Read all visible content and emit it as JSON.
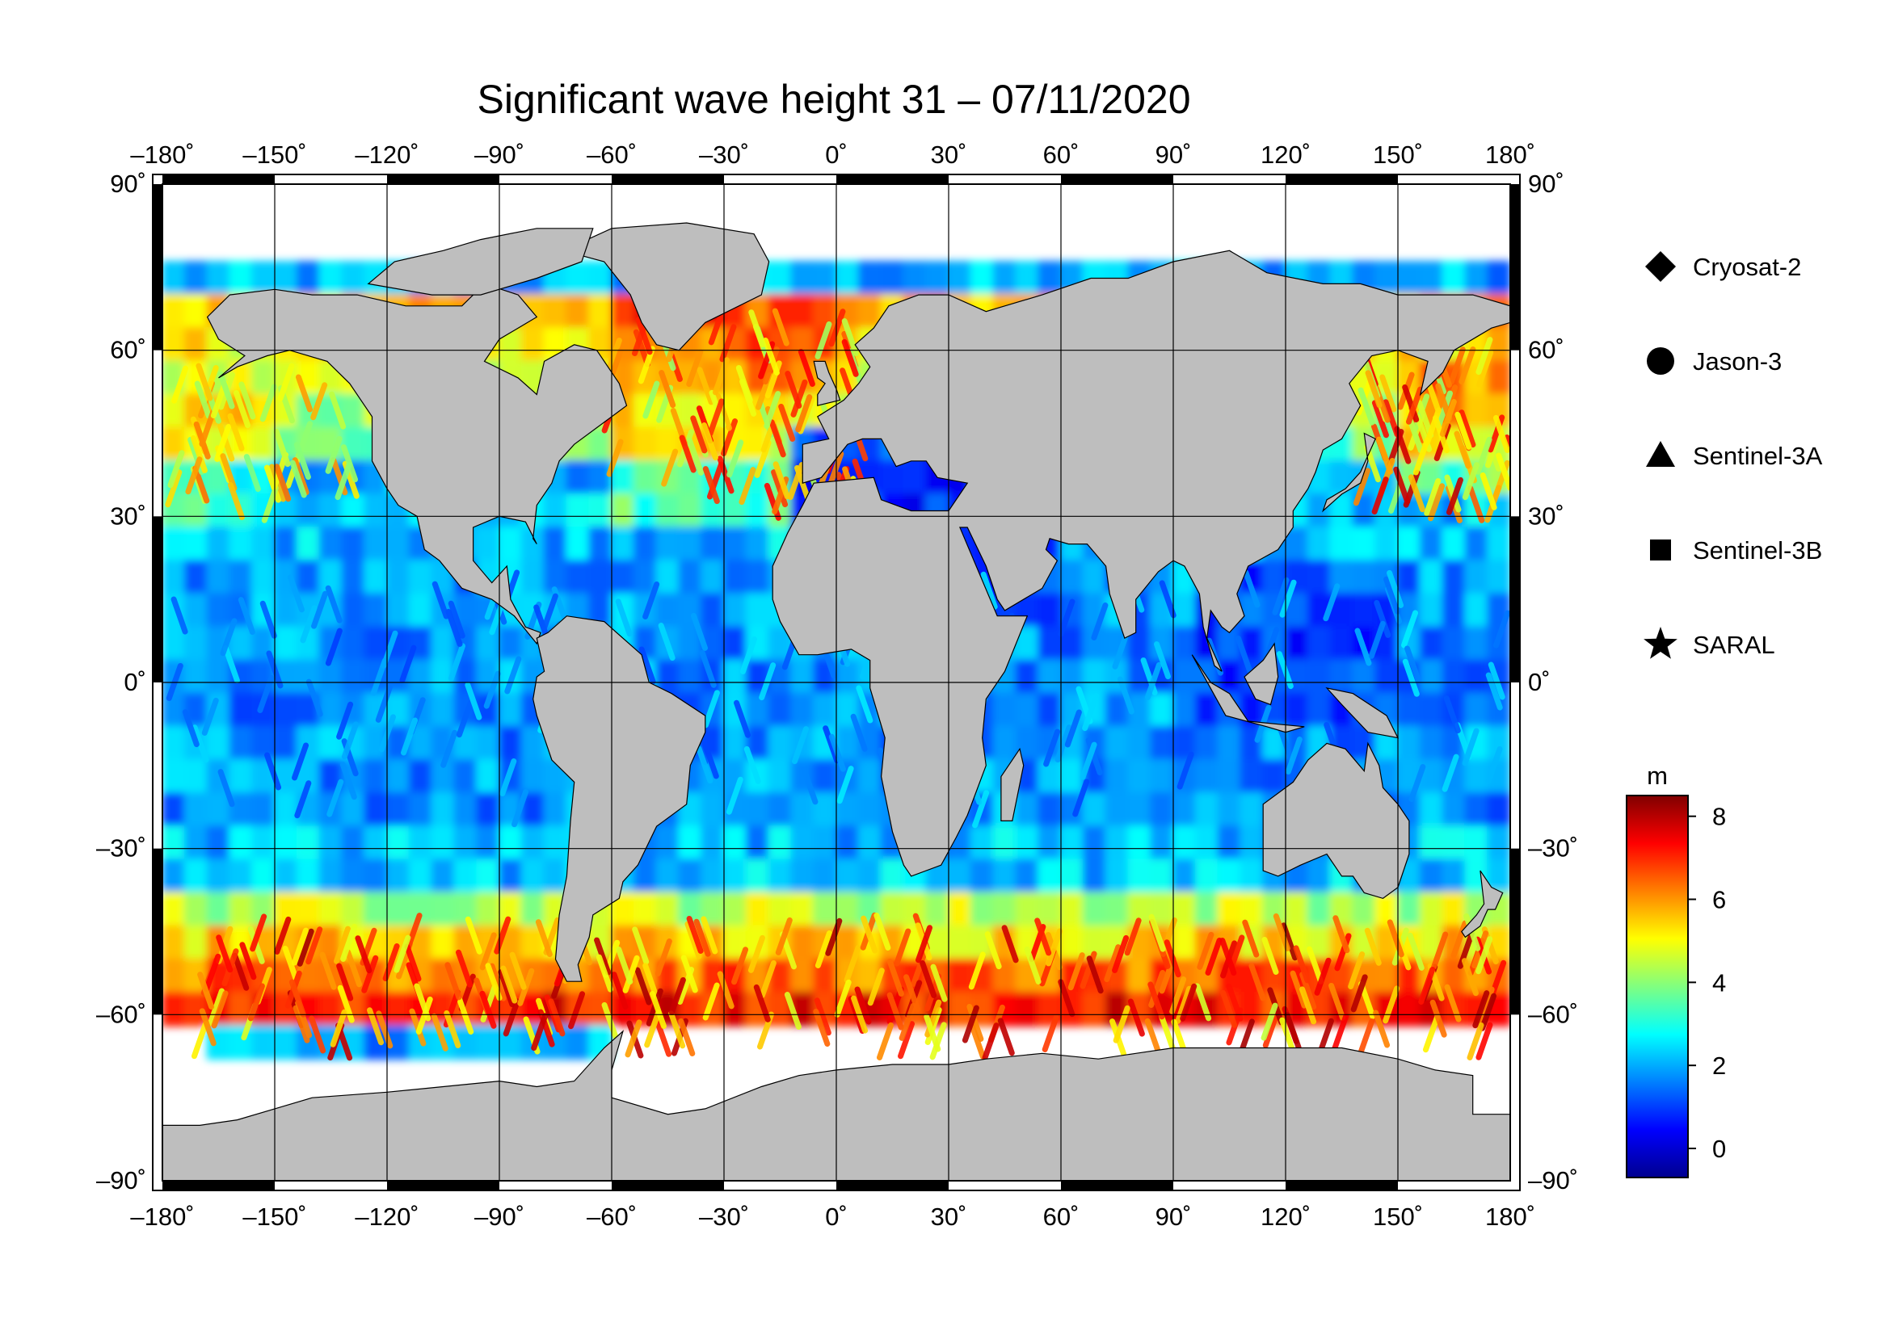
{
  "title": "Significant wave height 31 – 07/11/2020",
  "map": {
    "projection": "plate-carree",
    "lon_range": [
      -180,
      180
    ],
    "lat_range": [
      -90,
      90
    ],
    "lon_ticks": [
      {
        "value": -180,
        "label": "–180˚"
      },
      {
        "value": -150,
        "label": "–150˚"
      },
      {
        "value": -120,
        "label": "–120˚"
      },
      {
        "value": -90,
        "label": "–90˚"
      },
      {
        "value": -60,
        "label": "–60˚"
      },
      {
        "value": -30,
        "label": "–30˚"
      },
      {
        "value": 0,
        "label": "0˚"
      },
      {
        "value": 30,
        "label": "30˚"
      },
      {
        "value": 60,
        "label": "60˚"
      },
      {
        "value": 90,
        "label": "90˚"
      },
      {
        "value": 120,
        "label": "120˚"
      },
      {
        "value": 150,
        "label": "150˚"
      },
      {
        "value": 180,
        "label": "180˚"
      }
    ],
    "lat_ticks": [
      {
        "value": 90,
        "label": "90˚"
      },
      {
        "value": 60,
        "label": "60˚"
      },
      {
        "value": 30,
        "label": "30˚"
      },
      {
        "value": 0,
        "label": "0˚"
      },
      {
        "value": -30,
        "label": "–30˚"
      },
      {
        "value": -60,
        "label": "–60˚"
      },
      {
        "value": -90,
        "label": "–90˚"
      }
    ],
    "land_color": "#bebebe",
    "no_data_color": "#ffffff",
    "grid": true
  },
  "legend": {
    "placement": "right",
    "items": [
      {
        "name": "Cryosat-2",
        "symbol": "diamond"
      },
      {
        "name": "Jason-3",
        "symbol": "circle"
      },
      {
        "name": "Sentinel-3A",
        "symbol": "triangle"
      },
      {
        "name": "Sentinel-3B",
        "symbol": "square"
      },
      {
        "name": "SARAL",
        "symbol": "star"
      }
    ]
  },
  "colorbar": {
    "unit": "m",
    "range": [
      -0.7,
      8.5
    ],
    "ticks": [
      {
        "value": 0,
        "label": "0"
      },
      {
        "value": 2,
        "label": "2"
      },
      {
        "value": 4,
        "label": "4"
      },
      {
        "value": 6,
        "label": "6"
      },
      {
        "value": 8,
        "label": "8"
      }
    ],
    "colormap": "jet",
    "colors": [
      "#00008f",
      "#0000ff",
      "#0080ff",
      "#00ffff",
      "#80ff80",
      "#ffff00",
      "#ff8000",
      "#ff0000",
      "#800000"
    ]
  }
}
